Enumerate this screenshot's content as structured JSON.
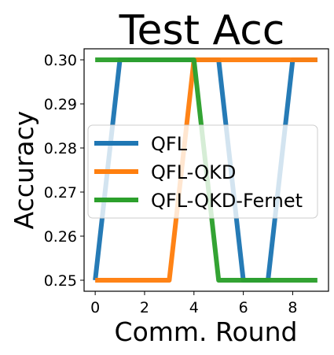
{
  "chart_data": {
    "type": "line",
    "title": "Test Acc",
    "xlabel": "Comm. Round",
    "ylabel": "Accuracy",
    "x": [
      0,
      1,
      2,
      3,
      4,
      5,
      6,
      7,
      8,
      9
    ],
    "xlim": [
      -0.45,
      9.45
    ],
    "ylim": [
      0.2475,
      0.3025
    ],
    "xticks": [
      0,
      2,
      4,
      6,
      8
    ],
    "xtick_labels": [
      "0",
      "2",
      "4",
      "6",
      "8"
    ],
    "yticks": [
      0.25,
      0.26,
      0.27,
      0.28,
      0.29,
      0.3
    ],
    "ytick_labels": [
      "0.25",
      "0.26",
      "0.27",
      "0.28",
      "0.29",
      "0.30"
    ],
    "grid": false,
    "legend_position": "center-left",
    "series": [
      {
        "name": "QFL",
        "color": "#1f77b4",
        "values": [
          0.25,
          0.3,
          0.3,
          0.3,
          0.3,
          0.3,
          0.25,
          0.25,
          0.3,
          0.3
        ]
      },
      {
        "name": "QFL-QKD",
        "color": "#ff7f0e",
        "values": [
          0.25,
          0.25,
          0.25,
          0.25,
          0.3,
          0.3,
          0.3,
          0.3,
          0.3,
          0.3
        ]
      },
      {
        "name": "QFL-QKD-Fernet",
        "color": "#2ca02c",
        "values": [
          0.3,
          0.3,
          0.3,
          0.3,
          0.3,
          0.25,
          0.25,
          0.25,
          0.25,
          0.25
        ]
      }
    ]
  }
}
